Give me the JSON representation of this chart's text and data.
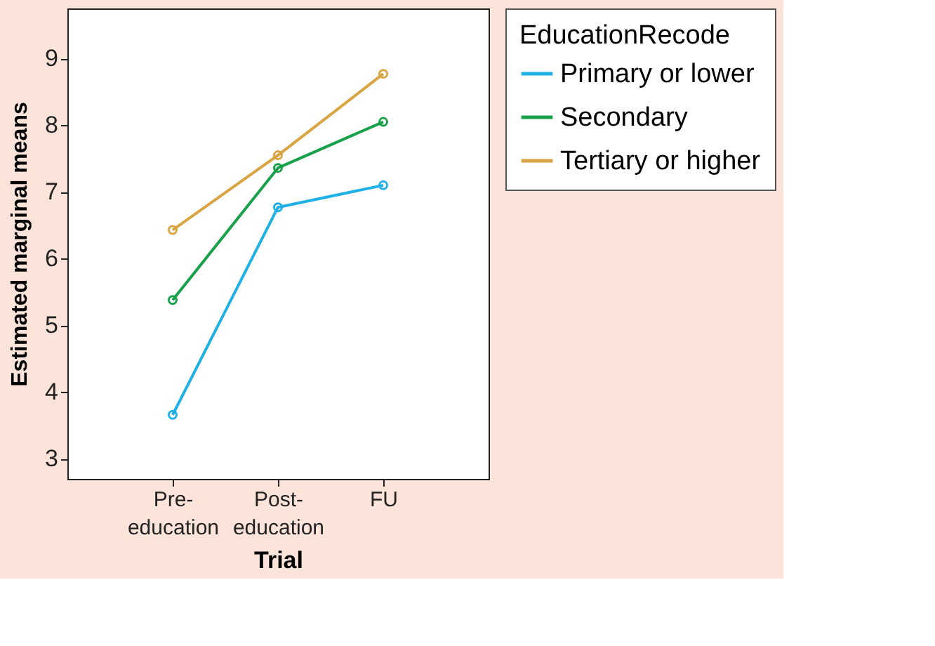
{
  "chart_data": {
    "type": "line",
    "xlabel": "Trial",
    "ylabel": "Estimated marginal means",
    "legend_title": "EducationRecode",
    "categories": [
      "Pre-education",
      "Post-education",
      "FU"
    ],
    "series": [
      {
        "name": "Primary or lower",
        "color": "#1fb0e6",
        "values": [
          3.66,
          6.77,
          7.1
        ]
      },
      {
        "name": "Secondary",
        "color": "#18a04a",
        "values": [
          5.38,
          7.36,
          8.05
        ]
      },
      {
        "name": "Tertiary or higher",
        "color": "#d9a441",
        "values": [
          6.43,
          7.55,
          8.77
        ]
      }
    ],
    "ylim": [
      2.7,
      9.75
    ],
    "yticks": [
      3,
      4,
      5,
      6,
      7,
      8,
      9
    ],
    "grid": false,
    "legend": "top right",
    "marker": "circle",
    "line_style": "solid"
  }
}
